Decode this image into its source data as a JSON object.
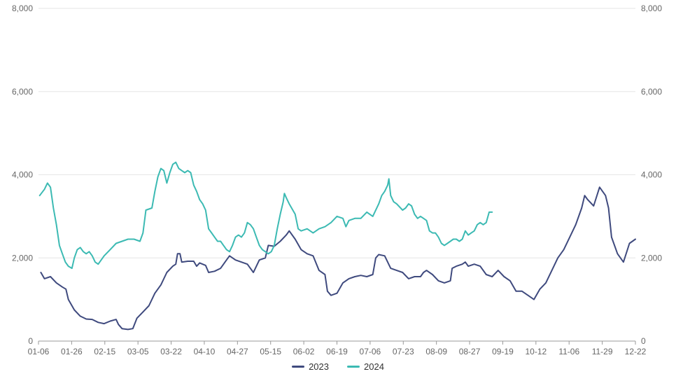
{
  "chart_data": {
    "type": "line",
    "title": "",
    "xlabel": "",
    "ylabel": "",
    "ylim": [
      0,
      8000
    ],
    "y_ticks": [
      "0",
      "2,000",
      "4,000",
      "6,000",
      "8,000"
    ],
    "y_tick_values": [
      0,
      2000,
      4000,
      6000,
      8000
    ],
    "x_tick_labels": [
      "01-06",
      "01-26",
      "02-15",
      "03-05",
      "03-22",
      "04-10",
      "04-27",
      "05-15",
      "06-02",
      "06-19",
      "07-06",
      "07-23",
      "08-09",
      "08-27",
      "09-19",
      "10-12",
      "11-06",
      "11-29",
      "12-22"
    ],
    "x_range": [
      0,
      100
    ],
    "grid": "horizontal",
    "secondary_y_axis": true,
    "legend_position": "bottom",
    "series": [
      {
        "name": "2023",
        "color": "#3f4a7e",
        "points": [
          [
            0.4,
            1650
          ],
          [
            1,
            1500
          ],
          [
            2,
            1550
          ],
          [
            3,
            1400
          ],
          [
            4,
            1300
          ],
          [
            4.6,
            1250
          ],
          [
            5,
            1000
          ],
          [
            6,
            750
          ],
          [
            7,
            600
          ],
          [
            8,
            530
          ],
          [
            9,
            520
          ],
          [
            10,
            450
          ],
          [
            11,
            420
          ],
          [
            12,
            480
          ],
          [
            13,
            520
          ],
          [
            13.4,
            400
          ],
          [
            14,
            300
          ],
          [
            15,
            280
          ],
          [
            15.8,
            300
          ],
          [
            16.5,
            550
          ],
          [
            17.5,
            700
          ],
          [
            18.5,
            850
          ],
          [
            19.5,
            1150
          ],
          [
            20.5,
            1350
          ],
          [
            21.5,
            1650
          ],
          [
            22.5,
            1800
          ],
          [
            23,
            1850
          ],
          [
            23.3,
            2100
          ],
          [
            23.7,
            2100
          ],
          [
            24,
            1900
          ],
          [
            25,
            1920
          ],
          [
            26,
            1920
          ],
          [
            26.5,
            1800
          ],
          [
            27,
            1880
          ],
          [
            28,
            1820
          ],
          [
            28.5,
            1650
          ],
          [
            29.5,
            1680
          ],
          [
            30.5,
            1750
          ],
          [
            31.5,
            1950
          ],
          [
            32,
            2050
          ],
          [
            33,
            1950
          ],
          [
            34,
            1900
          ],
          [
            35,
            1850
          ],
          [
            36,
            1650
          ],
          [
            37,
            1950
          ],
          [
            38,
            2000
          ],
          [
            38.5,
            2300
          ],
          [
            39.5,
            2280
          ],
          [
            40.5,
            2400
          ],
          [
            41.5,
            2550
          ],
          [
            42,
            2650
          ],
          [
            43,
            2450
          ],
          [
            44,
            2200
          ],
          [
            45,
            2100
          ],
          [
            46,
            2050
          ],
          [
            47,
            1700
          ],
          [
            48,
            1600
          ],
          [
            48.4,
            1200
          ],
          [
            49,
            1100
          ],
          [
            50,
            1150
          ],
          [
            51,
            1400
          ],
          [
            52,
            1500
          ],
          [
            53,
            1550
          ],
          [
            54,
            1580
          ],
          [
            55,
            1550
          ],
          [
            56,
            1600
          ],
          [
            56.5,
            2000
          ],
          [
            57,
            2080
          ],
          [
            58,
            2050
          ],
          [
            59,
            1750
          ],
          [
            60,
            1700
          ],
          [
            61,
            1650
          ],
          [
            62,
            1500
          ],
          [
            63,
            1550
          ],
          [
            64,
            1550
          ],
          [
            64.5,
            1650
          ],
          [
            65,
            1700
          ],
          [
            66,
            1600
          ],
          [
            67,
            1450
          ],
          [
            68,
            1400
          ],
          [
            69,
            1450
          ],
          [
            69.3,
            1750
          ],
          [
            70,
            1800
          ],
          [
            71,
            1850
          ],
          [
            71.5,
            1900
          ],
          [
            72,
            1800
          ],
          [
            73,
            1850
          ],
          [
            74,
            1800
          ],
          [
            75,
            1600
          ],
          [
            76,
            1550
          ],
          [
            77,
            1700
          ],
          [
            78,
            1550
          ],
          [
            79,
            1450
          ],
          [
            80,
            1200
          ],
          [
            81,
            1200
          ],
          [
            82,
            1100
          ],
          [
            83,
            1000
          ],
          [
            84,
            1250
          ],
          [
            85,
            1400
          ],
          [
            86,
            1700
          ],
          [
            87,
            2000
          ],
          [
            88,
            2200
          ],
          [
            89,
            2500
          ],
          [
            90,
            2800
          ],
          [
            91,
            3200
          ],
          [
            91.5,
            3500
          ],
          [
            92,
            3400
          ],
          [
            93,
            3250
          ],
          [
            94,
            3700
          ],
          [
            95,
            3500
          ],
          [
            95.5,
            3200
          ],
          [
            96,
            2500
          ],
          [
            97,
            2100
          ],
          [
            98,
            1900
          ],
          [
            99,
            2350
          ],
          [
            100,
            2450
          ]
        ]
      },
      {
        "name": "2024",
        "color": "#3cbab3",
        "points": [
          [
            0.2,
            3500
          ],
          [
            1,
            3650
          ],
          [
            1.5,
            3800
          ],
          [
            2,
            3700
          ],
          [
            2.5,
            3200
          ],
          [
            3,
            2800
          ],
          [
            3.5,
            2300
          ],
          [
            4,
            2100
          ],
          [
            4.5,
            1900
          ],
          [
            5,
            1800
          ],
          [
            5.6,
            1750
          ],
          [
            6,
            2000
          ],
          [
            6.5,
            2200
          ],
          [
            7,
            2250
          ],
          [
            7.5,
            2150
          ],
          [
            8,
            2100
          ],
          [
            8.5,
            2150
          ],
          [
            9,
            2050
          ],
          [
            9.5,
            1900
          ],
          [
            10,
            1850
          ],
          [
            11,
            2050
          ],
          [
            12,
            2200
          ],
          [
            13,
            2350
          ],
          [
            14,
            2400
          ],
          [
            15,
            2450
          ],
          [
            16,
            2450
          ],
          [
            17,
            2400
          ],
          [
            17.5,
            2600
          ],
          [
            18,
            3150
          ],
          [
            19,
            3200
          ],
          [
            19.5,
            3600
          ],
          [
            20,
            3950
          ],
          [
            20.5,
            4150
          ],
          [
            21,
            4100
          ],
          [
            21.5,
            3800
          ],
          [
            22,
            4050
          ],
          [
            22.5,
            4250
          ],
          [
            23,
            4300
          ],
          [
            23.5,
            4150
          ],
          [
            24,
            4100
          ],
          [
            24.5,
            4050
          ],
          [
            25,
            4100
          ],
          [
            25.5,
            4050
          ],
          [
            26,
            3750
          ],
          [
            26.5,
            3600
          ],
          [
            27,
            3400
          ],
          [
            27.5,
            3300
          ],
          [
            28,
            3150
          ],
          [
            28.5,
            2700
          ],
          [
            29,
            2600
          ],
          [
            29.5,
            2500
          ],
          [
            30,
            2400
          ],
          [
            30.5,
            2400
          ],
          [
            31,
            2300
          ],
          [
            31.5,
            2200
          ],
          [
            32,
            2150
          ],
          [
            32.5,
            2300
          ],
          [
            33,
            2500
          ],
          [
            33.5,
            2550
          ],
          [
            34,
            2500
          ],
          [
            34.5,
            2600
          ],
          [
            35,
            2850
          ],
          [
            35.5,
            2800
          ],
          [
            36,
            2700
          ],
          [
            36.5,
            2500
          ],
          [
            37,
            2300
          ],
          [
            37.5,
            2200
          ],
          [
            38,
            2150
          ],
          [
            38.5,
            2100
          ],
          [
            39,
            2150
          ],
          [
            39.5,
            2300
          ],
          [
            40,
            2700
          ],
          [
            40.5,
            3050
          ],
          [
            41,
            3350
          ],
          [
            41.2,
            3550
          ],
          [
            41.5,
            3450
          ],
          [
            42,
            3300
          ],
          [
            43,
            3050
          ],
          [
            43.5,
            2700
          ],
          [
            44,
            2650
          ],
          [
            45,
            2700
          ],
          [
            46,
            2600
          ],
          [
            47,
            2700
          ],
          [
            48,
            2750
          ],
          [
            49,
            2850
          ],
          [
            50,
            3000
          ],
          [
            51,
            2950
          ],
          [
            51.5,
            2750
          ],
          [
            52,
            2900
          ],
          [
            53,
            2950
          ],
          [
            54,
            2950
          ],
          [
            55,
            3100
          ],
          [
            55.5,
            3050
          ],
          [
            56,
            3000
          ],
          [
            57,
            3300
          ],
          [
            57.5,
            3500
          ],
          [
            58,
            3600
          ],
          [
            58.5,
            3750
          ],
          [
            58.7,
            3900
          ],
          [
            59,
            3500
          ],
          [
            59.5,
            3350
          ],
          [
            60,
            3300
          ],
          [
            61,
            3150
          ],
          [
            61.5,
            3200
          ],
          [
            62,
            3300
          ],
          [
            62.5,
            3250
          ],
          [
            63,
            3050
          ],
          [
            63.5,
            2950
          ],
          [
            64,
            3000
          ],
          [
            64.5,
            2950
          ],
          [
            65,
            2900
          ],
          [
            65.5,
            2650
          ],
          [
            66,
            2600
          ],
          [
            66.5,
            2600
          ],
          [
            67,
            2500
          ],
          [
            67.5,
            2350
          ],
          [
            68,
            2300
          ],
          [
            68.5,
            2350
          ],
          [
            69,
            2400
          ],
          [
            69.5,
            2450
          ],
          [
            70,
            2450
          ],
          [
            70.5,
            2400
          ],
          [
            71,
            2450
          ],
          [
            71.5,
            2650
          ],
          [
            72,
            2550
          ],
          [
            72.5,
            2600
          ],
          [
            73,
            2650
          ],
          [
            73.5,
            2800
          ],
          [
            74,
            2850
          ],
          [
            74.5,
            2800
          ],
          [
            75,
            2850
          ],
          [
            75.5,
            3100
          ],
          [
            76,
            3100
          ]
        ]
      }
    ]
  },
  "legend": {
    "items": [
      {
        "label": "2023",
        "color": "#3f4a7e"
      },
      {
        "label": "2024",
        "color": "#3cbab3"
      }
    ]
  }
}
